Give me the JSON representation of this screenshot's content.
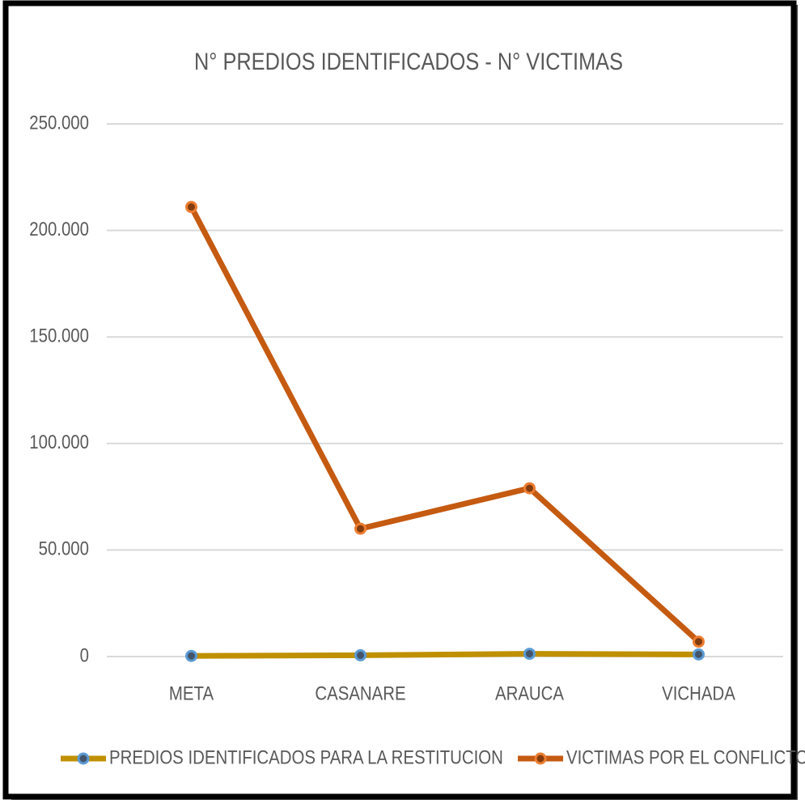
{
  "chart_data": {
    "type": "line",
    "title": "N° PREDIOS IDENTIFICADOS  - N° VICTIMAS",
    "categories": [
      "META",
      "CASANARE",
      "ARAUCA",
      "VICHADA"
    ],
    "series": [
      {
        "name": "PREDIOS IDENTIFICADOS PARA LA RESTITUCION",
        "color": "#bf9000",
        "marker_fill": "#44546a",
        "marker_stroke": "#5b9bd5",
        "values": [
          300,
          600,
          1300,
          1000
        ]
      },
      {
        "name": "VICTIMAS POR EL CONFLICTO",
        "color": "#c55a11",
        "marker_fill": "#843c0c",
        "marker_stroke": "#ed7d31",
        "values": [
          211000,
          60000,
          79000,
          7000
        ]
      }
    ],
    "ylim": [
      0,
      250000
    ],
    "yticks": [
      0,
      {
        "value": 50000,
        "label": "50.000"
      },
      {
        "value": 100000,
        "label": "100.000"
      },
      {
        "value": 150000,
        "label": "150.000"
      },
      {
        "value": 200000,
        "label": "200.000"
      },
      {
        "value": 250000,
        "label": "250.000"
      }
    ],
    "grid": true,
    "legend": "bottom"
  }
}
